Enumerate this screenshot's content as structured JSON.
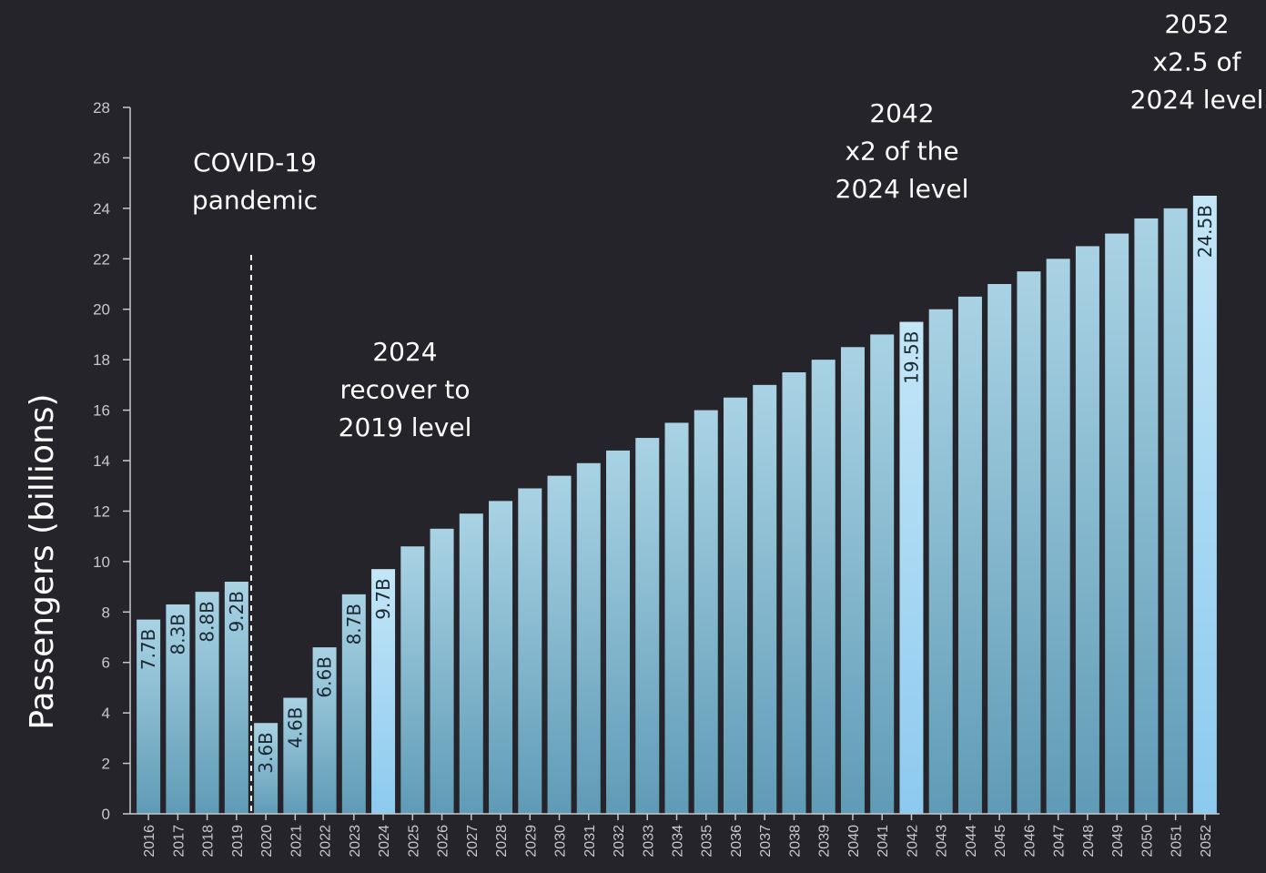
{
  "chart_data": {
    "type": "bar",
    "title": "",
    "xlabel": "",
    "ylabel": "Passengers (billions)",
    "ylim": [
      0,
      28
    ],
    "yticks": [
      0,
      2,
      4,
      6,
      8,
      10,
      12,
      14,
      16,
      18,
      20,
      22,
      24,
      26,
      28
    ],
    "grid": false,
    "categories": [
      "2016",
      "2017",
      "2018",
      "2019",
      "2020",
      "2021",
      "2022",
      "2023",
      "2024",
      "2025",
      "2026",
      "2027",
      "2028",
      "2029",
      "2030",
      "2031",
      "2032",
      "2033",
      "2034",
      "2035",
      "2036",
      "2037",
      "2038",
      "2039",
      "2040",
      "2041",
      "2042",
      "2043",
      "2044",
      "2045",
      "2046",
      "2047",
      "2048",
      "2049",
      "2050",
      "2051",
      "2052"
    ],
    "values": [
      7.7,
      8.3,
      8.8,
      9.2,
      3.6,
      4.6,
      6.6,
      8.7,
      9.7,
      10.6,
      11.3,
      11.9,
      12.4,
      12.9,
      13.4,
      13.9,
      14.4,
      14.9,
      15.5,
      16.0,
      16.5,
      17.0,
      17.5,
      18.0,
      18.5,
      19.0,
      19.5,
      20.0,
      20.5,
      21.0,
      21.5,
      22.0,
      22.5,
      23.0,
      23.6,
      24.0,
      24.5
    ],
    "data_labels": {
      "2016": "7.7B",
      "2017": "8.3B",
      "2018": "8.8B",
      "2019": "9.2B",
      "2020": "3.6B",
      "2021": "4.6B",
      "2022": "6.6B",
      "2023": "8.7B",
      "2024": "9.7B",
      "2042": "19.5B",
      "2052": "24.5B"
    },
    "highlighted": [
      "2024",
      "2042",
      "2052"
    ],
    "colors": {
      "background": "#25242b",
      "bar_top": "#a9d3e4",
      "bar_bottom": "#5f9bb6",
      "highlight_top": "#c4e6f7",
      "highlight_bottom": "#8ccaef",
      "axis": "#c8c8cc",
      "text": "#ffffff"
    },
    "divider": {
      "between": [
        "2019",
        "2020"
      ],
      "style": "dashed"
    },
    "annotations": [
      {
        "id": "covid",
        "lines": [
          "COVID-19",
          "pandemic"
        ]
      },
      {
        "id": "recover",
        "lines": [
          "2024",
          "recover to",
          "2019 level"
        ]
      },
      {
        "id": "double",
        "lines": [
          "2042",
          "x2 of the",
          "2024 level"
        ]
      },
      {
        "id": "triple",
        "lines": [
          "2052",
          "x2.5 of",
          "2024 level"
        ]
      }
    ]
  }
}
